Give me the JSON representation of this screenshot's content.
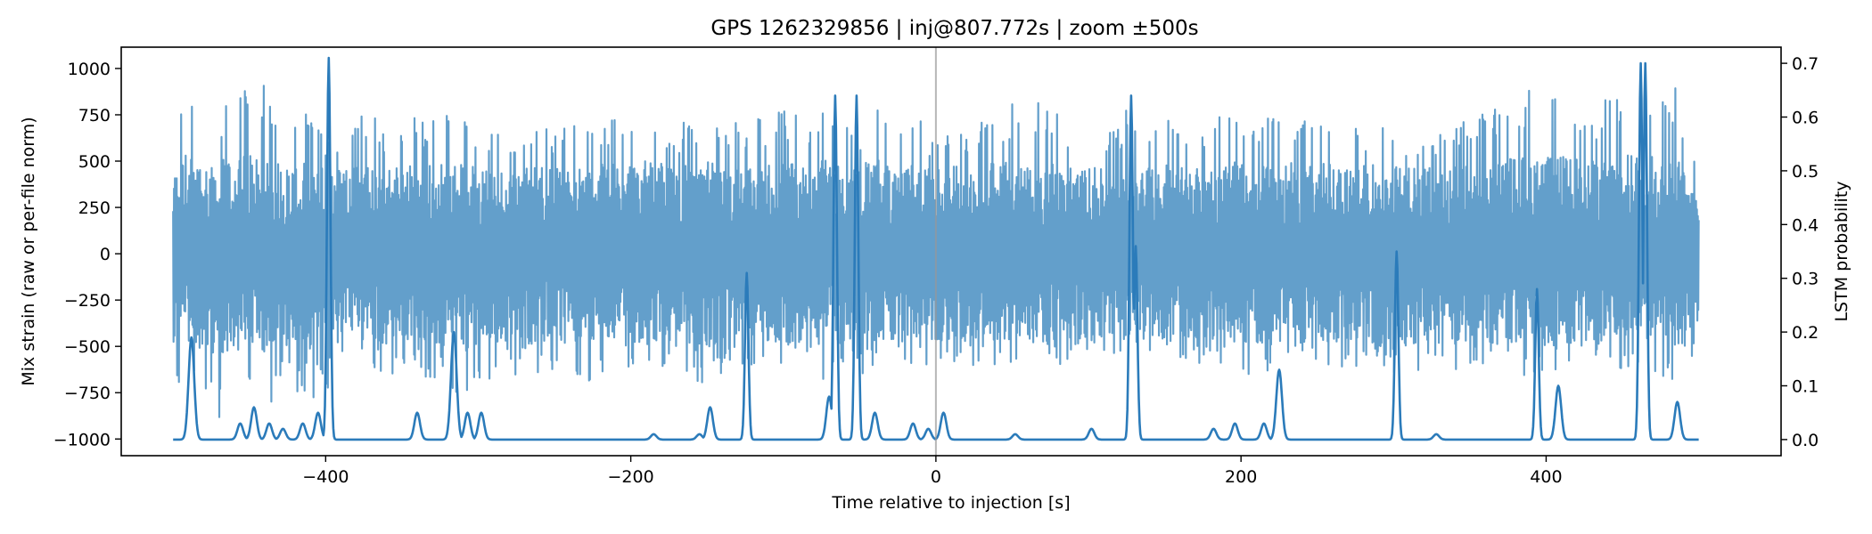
{
  "chart_data": {
    "type": "line",
    "title": "GPS 1262329856 | inj@807.772s | zoom ±500s",
    "xlabel": "Time relative to injection [s]",
    "ylabel_left": "Mix strain (raw or per-file norm)",
    "ylabel_right": "LSTM probability",
    "xlim": [
      -534,
      554
    ],
    "ylim_left": [
      -1090,
      1115
    ],
    "ylim_right": [
      -0.03,
      0.73
    ],
    "x_ticks": [
      -400,
      -200,
      0,
      200,
      400
    ],
    "y_left_ticks": [
      -1000,
      -750,
      -500,
      -250,
      0,
      250,
      500,
      750,
      1000
    ],
    "y_right_ticks": [
      0.0,
      0.1,
      0.2,
      0.3,
      0.4,
      0.5,
      0.6,
      0.7
    ],
    "injection_marker_x": 0,
    "grid": false,
    "series": [
      {
        "axis": "left",
        "color": "#639fcb",
        "x_range": [
          -500,
          500
        ],
        "baseline_envelope": [
          -500,
          500
        ],
        "peaks": [
          [
            -500,
            590,
            -610
          ],
          [
            -492,
            1010,
            -830
          ],
          [
            -485,
            800,
            -700
          ],
          [
            -470,
            820,
            -900
          ],
          [
            -455,
            920,
            -750
          ],
          [
            -440,
            960,
            -850
          ],
          [
            -425,
            750,
            -700
          ],
          [
            -410,
            760,
            -800
          ],
          [
            -398,
            640,
            -750
          ],
          [
            -380,
            800,
            -600
          ],
          [
            -360,
            700,
            -680
          ],
          [
            -345,
            740,
            -650
          ],
          [
            -320,
            760,
            -760
          ],
          [
            -300,
            720,
            -800
          ],
          [
            -280,
            650,
            -680
          ],
          [
            -260,
            700,
            -650
          ],
          [
            -240,
            700,
            -650
          ],
          [
            -225,
            690,
            -720
          ],
          [
            -200,
            860,
            -630
          ],
          [
            -185,
            770,
            -600
          ],
          [
            -170,
            690,
            -640
          ],
          [
            -150,
            800,
            -710
          ],
          [
            -125,
            700,
            -600
          ],
          [
            -105,
            780,
            -610
          ],
          [
            -90,
            780,
            -650
          ],
          [
            -70,
            820,
            -700
          ],
          [
            -55,
            660,
            -650
          ],
          [
            -38,
            880,
            -640
          ],
          [
            -25,
            650,
            -590
          ],
          [
            -10,
            740,
            -610
          ],
          [
            0,
            630,
            -590
          ],
          [
            15,
            700,
            -590
          ],
          [
            40,
            780,
            -620
          ],
          [
            60,
            860,
            -620
          ],
          [
            85,
            760,
            -600
          ],
          [
            110,
            620,
            -560
          ],
          [
            128,
            810,
            -600
          ],
          [
            145,
            740,
            -650
          ],
          [
            170,
            700,
            -590
          ],
          [
            193,
            780,
            -600
          ],
          [
            210,
            760,
            -680
          ],
          [
            235,
            760,
            -640
          ],
          [
            255,
            790,
            -610
          ],
          [
            270,
            700,
            -630
          ],
          [
            290,
            720,
            -650
          ],
          [
            310,
            690,
            -690
          ],
          [
            330,
            660,
            -640
          ],
          [
            360,
            760,
            -620
          ],
          [
            375,
            930,
            -640
          ],
          [
            395,
            870,
            -740
          ],
          [
            410,
            920,
            -660
          ],
          [
            430,
            800,
            -640
          ],
          [
            440,
            840,
            -650
          ],
          [
            462,
            1000,
            -680
          ],
          [
            470,
            900,
            -650
          ],
          [
            485,
            900,
            -770
          ],
          [
            500,
            580,
            -600
          ]
        ]
      },
      {
        "axis": "right",
        "color": "#2b7bba",
        "baseline": 0.0,
        "spikes": [
          [
            -488,
            0.19
          ],
          [
            -456,
            0.03
          ],
          [
            -447,
            0.06
          ],
          [
            -437,
            0.03
          ],
          [
            -428,
            0.02
          ],
          [
            -415,
            0.03
          ],
          [
            -405,
            0.05
          ],
          [
            -398,
            0.71
          ],
          [
            -340,
            0.05
          ],
          [
            -316,
            0.2
          ],
          [
            -307,
            0.05
          ],
          [
            -298,
            0.05
          ],
          [
            -185,
            0.01
          ],
          [
            -155,
            0.01
          ],
          [
            -148,
            0.06
          ],
          [
            -124,
            0.31
          ],
          [
            -70,
            0.08
          ],
          [
            -66,
            0.64
          ],
          [
            -52,
            0.64
          ],
          [
            -40,
            0.05
          ],
          [
            -15,
            0.03
          ],
          [
            -5,
            0.02
          ],
          [
            5,
            0.05
          ],
          [
            52,
            0.01
          ],
          [
            102,
            0.02
          ],
          [
            128,
            0.64
          ],
          [
            131,
            0.36
          ],
          [
            182,
            0.02
          ],
          [
            196,
            0.03
          ],
          [
            215,
            0.03
          ],
          [
            225,
            0.13
          ],
          [
            302,
            0.35
          ],
          [
            328,
            0.01
          ],
          [
            394,
            0.28
          ],
          [
            408,
            0.1
          ],
          [
            462,
            0.7
          ],
          [
            465,
            0.7
          ],
          [
            486,
            0.07
          ]
        ]
      }
    ]
  }
}
